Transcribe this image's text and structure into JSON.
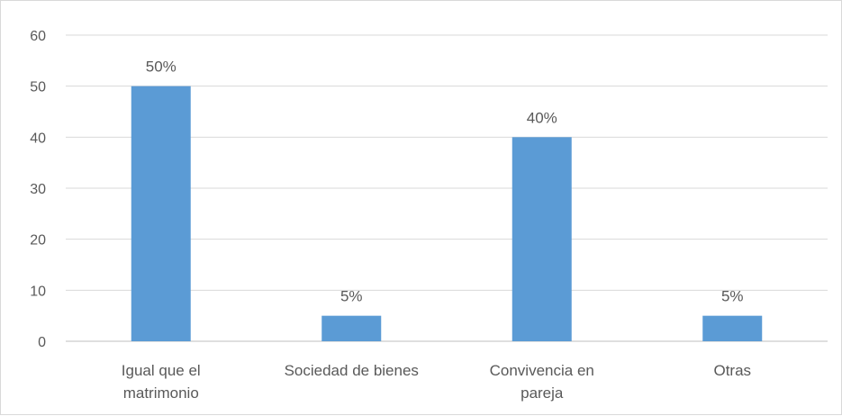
{
  "chart_data": {
    "type": "bar",
    "categories": [
      [
        "Igual que el",
        "matrimonio"
      ],
      [
        "Sociedad de bienes"
      ],
      [
        "Convivencia en",
        "pareja"
      ],
      [
        "Otras"
      ]
    ],
    "values": [
      50,
      5,
      40,
      5
    ],
    "data_labels": [
      "50%",
      "5%",
      "40%",
      "5%"
    ],
    "yticks": [
      "0",
      "10",
      "20",
      "30",
      "40",
      "50",
      "60"
    ],
    "ylim": [
      0,
      60
    ],
    "grid": true,
    "legend": "none",
    "colors": {
      "bar": "#5b9bd5",
      "grid": "#d9d9d9",
      "axis": "#bfbfbf",
      "text": "#595959"
    }
  }
}
